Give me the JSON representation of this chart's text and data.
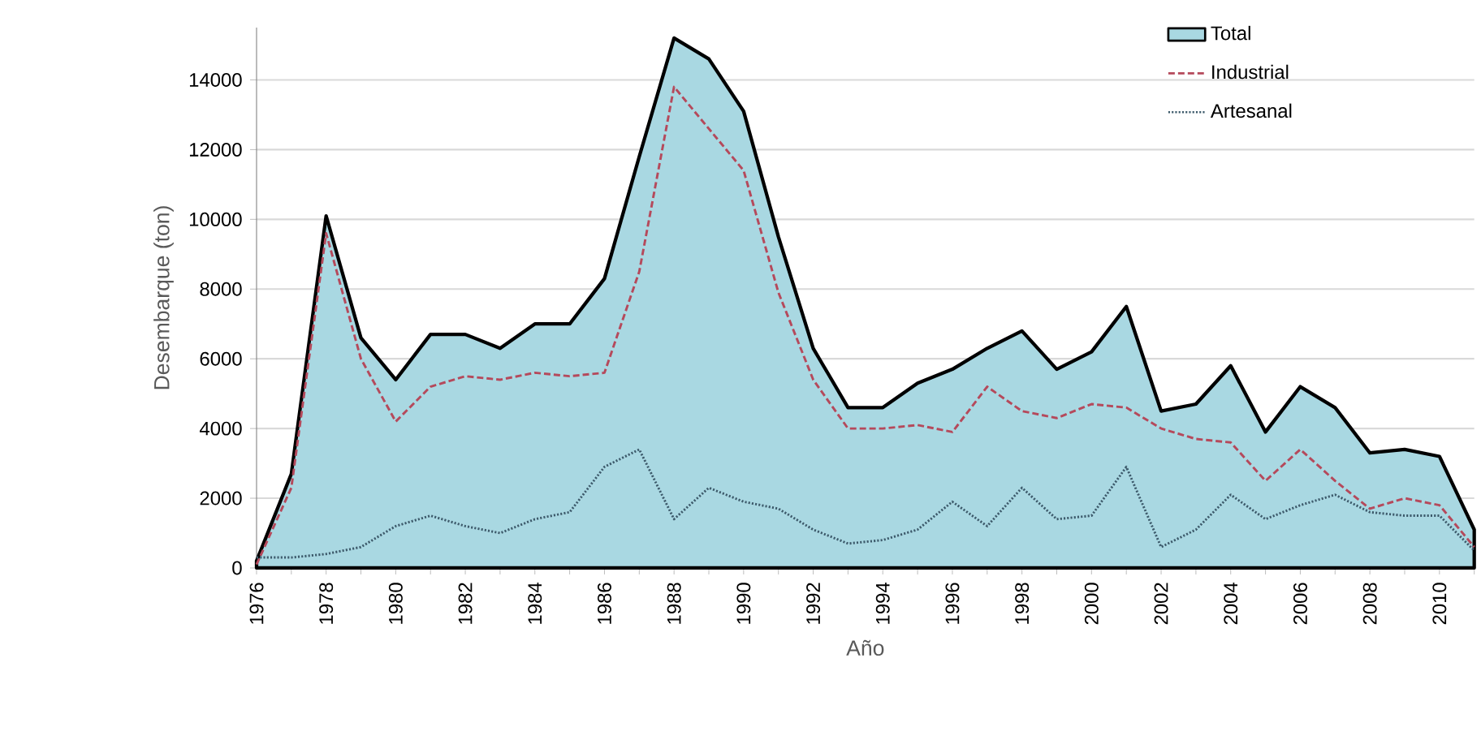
{
  "chart_data": {
    "type": "line",
    "xlabel": "Año",
    "ylabel": "Desembarque (ton)",
    "categories": [
      "1976",
      null,
      "1978",
      null,
      "1980",
      null,
      "1982",
      null,
      "1984",
      null,
      "1986",
      null,
      "1988",
      null,
      "1990",
      null,
      "1992",
      null,
      "1994",
      null,
      "1996",
      null,
      "1998",
      null,
      "2000",
      null,
      "2002",
      null,
      "2004",
      null,
      "2006",
      null,
      "2008",
      null,
      "2010",
      null
    ],
    "series": [
      {
        "name": "Total",
        "type": "area",
        "color": "#a9d8e2",
        "line_style": "solid",
        "values": [
          200,
          2700,
          10100,
          6600,
          5400,
          6700,
          6700,
          6300,
          7000,
          7000,
          8300,
          11800,
          15200,
          14600,
          13100,
          9500,
          6300,
          4600,
          4600,
          5300,
          5700,
          6300,
          6800,
          5700,
          6200,
          7500,
          4500,
          4700,
          5800,
          3900,
          5200,
          4600,
          3300,
          3400,
          3200,
          1100
        ]
      },
      {
        "name": "Industrial",
        "type": "line",
        "color": "#b5495b",
        "line_style": "dashed",
        "values": [
          100,
          2300,
          9600,
          6000,
          4200,
          5200,
          5500,
          5400,
          5600,
          5500,
          5600,
          8500,
          13800,
          12600,
          11400,
          7900,
          5400,
          4000,
          4000,
          4100,
          3900,
          5200,
          4500,
          4300,
          4700,
          4600,
          4000,
          3700,
          3600,
          2500,
          3400,
          2500,
          1700,
          2000,
          1800,
          600
        ]
      },
      {
        "name": "Artesanal",
        "type": "line",
        "color": "#3d5a6b",
        "line_style": "dotted",
        "values": [
          300,
          300,
          400,
          600,
          1200,
          1500,
          1200,
          1000,
          1400,
          1600,
          2900,
          3400,
          1400,
          2300,
          1900,
          1700,
          1100,
          700,
          800,
          1100,
          1900,
          1200,
          2300,
          1400,
          1500,
          2900,
          600,
          1100,
          2100,
          1400,
          1800,
          2100,
          1600,
          1500,
          1500,
          500
        ]
      }
    ],
    "ylim": [
      0,
      15500
    ],
    "yticks": [
      0,
      2000,
      4000,
      6000,
      8000,
      10000,
      12000,
      14000
    ],
    "grid": "y",
    "legend": "top right",
    "marker": "none"
  }
}
